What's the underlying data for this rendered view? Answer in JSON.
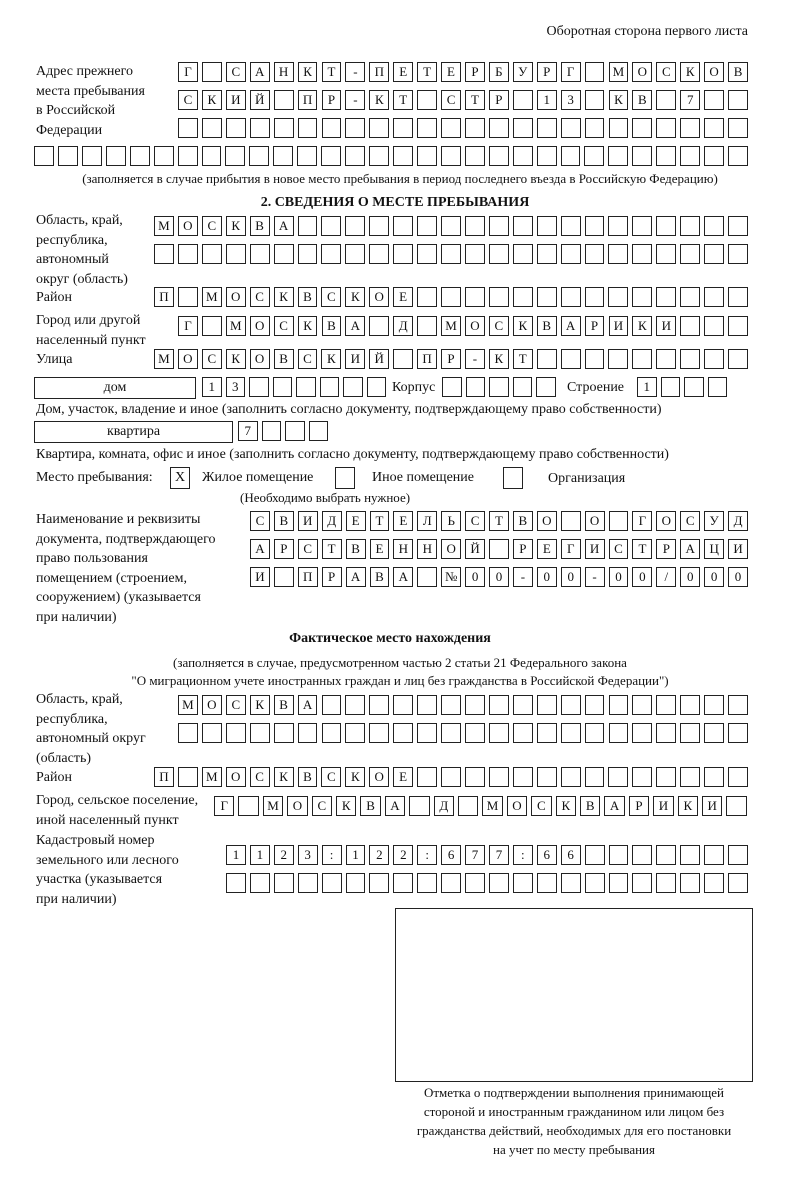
{
  "header": "Оборотная сторона первого листа",
  "previous_address": {
    "label": "Адрес прежнего\nместа пребывания\nв Российской\nФедерации",
    "rows": [
      "Г САНКТ-ПЕТЕРБУРГ МОСКОВ",
      "СКИЙ ПР-КТ СТР 13 КВ 7",
      "",
      ""
    ],
    "note": "(заполняется в случае прибытия в новое место пребывания в период последнего въезда в Российскую Федерацию)"
  },
  "section2": {
    "title": "2. СВЕДЕНИЯ О МЕСТЕ ПРЕБЫВАНИЯ",
    "region_label": "Область, край,\nреспублика,\nавтономный\nокруг (область)",
    "region_rows": [
      "МОСКВА",
      ""
    ],
    "district_label": "Район",
    "district": "П МОСКВСКОЕ",
    "city_label": "Город или другой\nнаселенный пункт",
    "city": "Г МОСКВА Д МОСКВАРИКИ",
    "street_label": "Улица",
    "street": "МОСКОВСКИЙ ПР-КТ",
    "house_type": "дом",
    "house": "13",
    "korpus_label": "Корпус",
    "korpus": "",
    "stroenie_label": "Строение",
    "stroenie": "1",
    "house_note": "Дом, участок, владение и иное (заполнить согласно документу, подтверждающему право собственности)",
    "flat_type": "квартира",
    "flat": "7",
    "flat_note": "Квартира, комната, офис и иное (заполнить согласно документу, подтверждающему право собственности)",
    "place_label": "Место пребывания:",
    "place_options": [
      {
        "label": "Жилое помещение",
        "mark": "Х"
      },
      {
        "label": "Иное помещение",
        "mark": ""
      },
      {
        "label": "Организация",
        "mark": ""
      }
    ],
    "place_note": "(Необходимо выбрать нужное)",
    "doc_label": "Наименование и реквизиты\nдокумента, подтверждающего\nправо пользования\nпомещением (строением,\nсооружением) (указывается\nпри наличии)",
    "doc_rows": [
      "СВИДЕТЕЛЬСТВО О ГОСУД",
      "АРСТВЕННОЙ РЕГИСТРАЦИ",
      "И ПРАВА №00-00-00/000"
    ]
  },
  "actual": {
    "title": "Фактическое место нахождения",
    "note": "(заполняется в случае, предусмотренном частью 2 статьи 21 Федерального закона\n\"О миграционном учете иностранных граждан и лиц без гражданства в Российской Федерации\")",
    "region_label": "Область, край,\nреспублика,\nавтономный округ\n(область)",
    "region_rows": [
      "МОСКВА",
      ""
    ],
    "district_label": "Район",
    "district": "П МОСКВСКОЕ",
    "city_label": "Город, сельское поселение,\nиной населенный пункт",
    "city": "Г МОСКВА Д МОСКВАРИКИ",
    "cadastre_label": "Кадастровый номер\nземельного или лесного\nучастка (указывается\nпри наличии)",
    "cadastre_rows": [
      "1123:122:677:66",
      ""
    ]
  },
  "stamp_caption": "Отметка о подтверждении выполнения принимающей\nстороной и иностранным гражданином или лицом без\nгражданства действий, необходимых для его постановки\nна учет по месту пребывания"
}
